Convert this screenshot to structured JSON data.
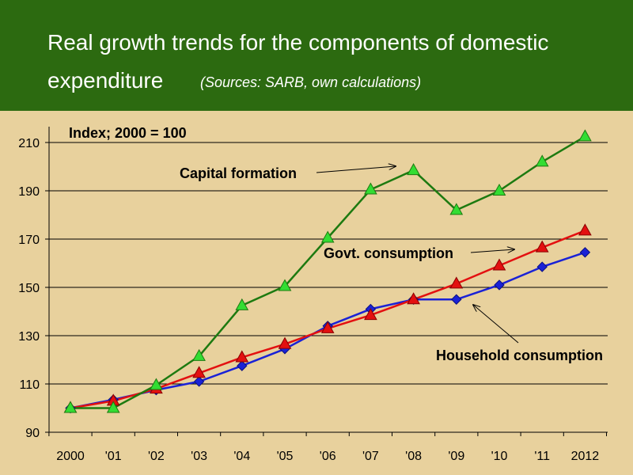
{
  "header": {
    "title_line1": "Real growth trends for the components of domestic",
    "title_line2": "expenditure",
    "subtitle": "(Sources: SARB, own calculations)"
  },
  "colors": {
    "header_bg": "#2c6a10",
    "plot_bg": "#e8d19d",
    "capital": "#1d7a10",
    "capital_marker": "#33dd33",
    "govt": "#e31010",
    "household": "#1a22d6"
  },
  "chart_data": {
    "type": "line",
    "ylabel": "Index; 2000 = 100",
    "xlabel": "",
    "ylim": [
      90,
      220
    ],
    "yticks": [
      90,
      110,
      130,
      150,
      170,
      190,
      210
    ],
    "grid": true,
    "categories": [
      "2000",
      "'01",
      "'02",
      "'03",
      "'04",
      "'05",
      "'06",
      "'07",
      "'08",
      "'09",
      "'10",
      "'11",
      "2012"
    ],
    "series": [
      {
        "name": "Capital formation",
        "marker": "triangle",
        "values": [
          100,
          100,
          109.5,
          121.5,
          142.5,
          150.5,
          170.5,
          190.5,
          198.5,
          182,
          190,
          202,
          212.5
        ]
      },
      {
        "name": "Govt. consumption",
        "marker": "triangle",
        "values": [
          100,
          103,
          108,
          114.5,
          121,
          126.5,
          133,
          138.5,
          145,
          151.5,
          159,
          166.5,
          173.5
        ]
      },
      {
        "name": "Household consumption",
        "marker": "diamond",
        "values": [
          100,
          103.5,
          107.5,
          111,
          117.5,
          124.5,
          134,
          141,
          145,
          145,
          151,
          158.5,
          164.5
        ]
      }
    ]
  }
}
